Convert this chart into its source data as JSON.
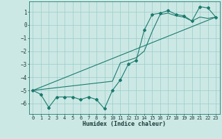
{
  "xlabel": "Humidex (Indice chaleur)",
  "bg_color": "#cce8e4",
  "grid_color": "#99cccc",
  "line_color": "#1a7a6e",
  "xlim": [
    -0.5,
    23.5
  ],
  "ylim": [
    -6.8,
    1.8
  ],
  "yticks": [
    1,
    0,
    -1,
    -2,
    -3,
    -4,
    -5,
    -6
  ],
  "xticks": [
    0,
    1,
    2,
    3,
    4,
    5,
    6,
    7,
    8,
    9,
    10,
    11,
    12,
    13,
    14,
    15,
    16,
    17,
    18,
    19,
    20,
    21,
    22,
    23
  ],
  "curve1_x": [
    0,
    1,
    2,
    3,
    4,
    5,
    6,
    7,
    8,
    9,
    10,
    11,
    12,
    13,
    14,
    15,
    16,
    17,
    18,
    19,
    20,
    21,
    22,
    23
  ],
  "curve1_y": [
    -5.0,
    -5.3,
    -6.3,
    -5.5,
    -5.5,
    -5.5,
    -5.7,
    -5.5,
    -5.7,
    -6.4,
    -5.0,
    -4.2,
    -3.0,
    -2.7,
    -0.4,
    0.8,
    0.9,
    1.1,
    0.8,
    0.7,
    0.3,
    1.4,
    1.3,
    0.6
  ],
  "curve2_x": [
    0,
    10,
    11,
    12,
    13,
    14,
    15,
    16,
    17,
    18,
    19,
    20,
    21,
    22,
    23
  ],
  "curve2_y": [
    -5.0,
    -4.3,
    -2.9,
    -2.7,
    -2.5,
    -2.0,
    -0.5,
    0.8,
    0.9,
    0.7,
    0.6,
    0.3,
    0.6,
    0.5,
    0.6
  ],
  "curve3_x": [
    0,
    23
  ],
  "curve3_y": [
    -5.0,
    0.6
  ],
  "tick_fontsize": 5,
  "xlabel_fontsize": 6,
  "marker_size": 2.0,
  "linewidth": 0.8
}
